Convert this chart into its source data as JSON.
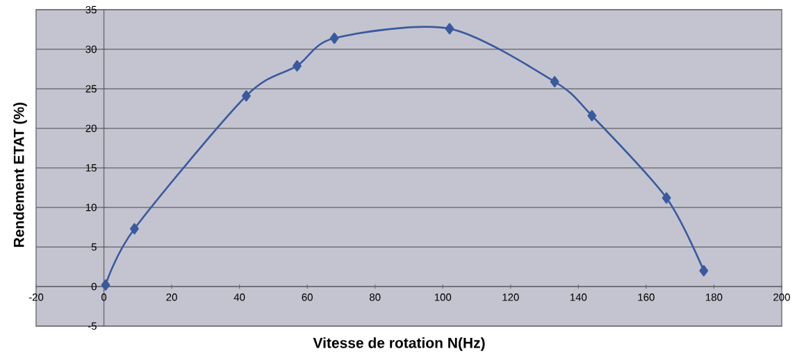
{
  "chart_data": {
    "type": "line",
    "xlabel": "Vitesse de rotation N(Hz)",
    "ylabel": "Rendement ETAT (%)",
    "x": [
      0.5,
      9,
      42,
      57,
      68,
      102,
      133,
      144,
      166,
      177
    ],
    "series": [
      {
        "color": "#3a5a9e",
        "values": [
          0.2,
          7.3,
          24.1,
          27.9,
          31.4,
          32.6,
          25.9,
          21.6,
          11.2,
          2.0
        ]
      }
    ],
    "xlim": [
      -20,
      200
    ],
    "ylim": [
      -5,
      35
    ],
    "xticks": [
      -20,
      0,
      20,
      40,
      60,
      80,
      100,
      120,
      140,
      160,
      180,
      200
    ],
    "yticks": [
      -5,
      0,
      5,
      10,
      15,
      20,
      25,
      30,
      35
    ],
    "grid": "y",
    "marker": "diamond",
    "line_style": "solid"
  }
}
